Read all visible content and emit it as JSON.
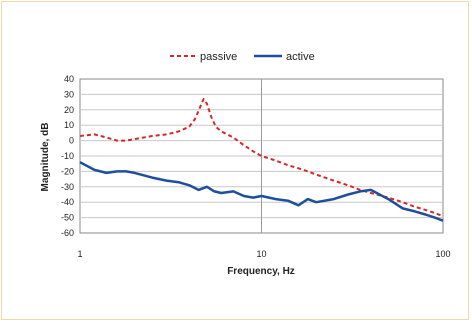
{
  "chart_data": {
    "type": "line",
    "xlabel": "Frequency, Hz",
    "ylabel": "Magnitude, dB",
    "x_scale": "log",
    "xlim": [
      1,
      100
    ],
    "ylim": [
      -60,
      40
    ],
    "x_ticks": [
      "1",
      "10",
      "100"
    ],
    "y_ticks": [
      "40",
      "30",
      "20",
      "10",
      "0",
      "-10",
      "-20",
      "-30",
      "-40",
      "-50",
      "-60"
    ],
    "grid": true,
    "legend_position": "top",
    "series": [
      {
        "name": "passive",
        "color": "#d62828",
        "style": "dashed",
        "x": [
          1,
          1.2,
          1.4,
          1.6,
          1.8,
          2,
          2.5,
          3,
          3.5,
          4,
          4.3,
          4.6,
          4.8,
          5,
          5.3,
          5.6,
          6,
          7,
          8,
          9,
          10,
          12,
          14,
          16,
          18,
          20,
          25,
          30,
          35,
          40,
          50,
          60,
          70,
          80,
          90,
          100
        ],
        "y": [
          3,
          4,
          2,
          0,
          0,
          1,
          3,
          4,
          6,
          9,
          14,
          22,
          27,
          24,
          15,
          9,
          6,
          2,
          -3,
          -7,
          -10,
          -13,
          -16,
          -18,
          -20,
          -22,
          -26,
          -29,
          -32,
          -34,
          -37,
          -40,
          -43,
          -45,
          -47,
          -49
        ]
      },
      {
        "name": "active",
        "color": "#1f4e9c",
        "style": "solid",
        "x": [
          1,
          1.2,
          1.4,
          1.6,
          1.8,
          2,
          2.5,
          3,
          3.5,
          4,
          4.5,
          5,
          5.5,
          6,
          7,
          8,
          9,
          10,
          12,
          14,
          16,
          18,
          20,
          25,
          30,
          35,
          40,
          50,
          60,
          70,
          80,
          90,
          100
        ],
        "y": [
          -14,
          -19,
          -21,
          -20,
          -20,
          -21,
          -24,
          -26,
          -27,
          -29,
          -32,
          -30,
          -33,
          -34,
          -33,
          -36,
          -37,
          -36,
          -38,
          -39,
          -42,
          -38,
          -40,
          -38,
          -35,
          -33,
          -32,
          -38,
          -44,
          -46,
          -48,
          -50,
          -52
        ]
      }
    ]
  }
}
